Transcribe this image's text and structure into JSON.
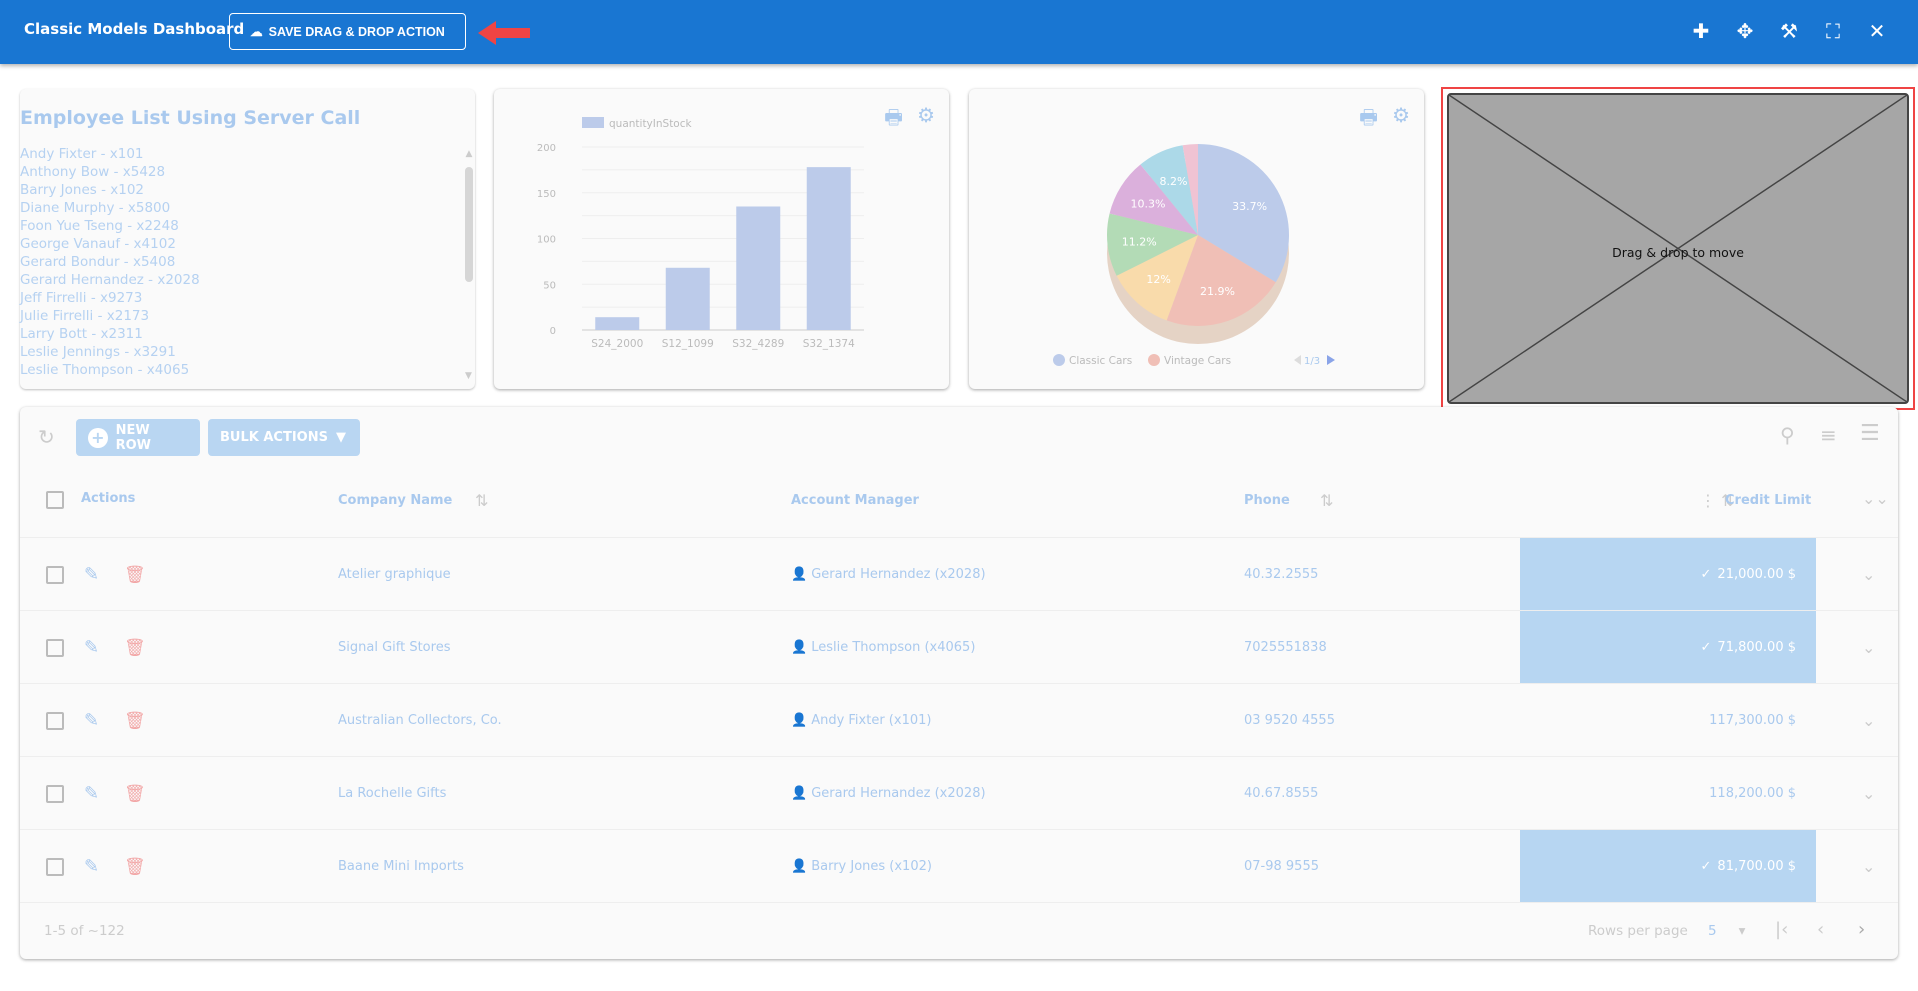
{
  "header": {
    "title": "Classic Models Dashboard",
    "save_button": "SAVE DRAG & DROP ACTION",
    "icons": [
      "puzzle-icon",
      "move-icon",
      "tools-icon",
      "fullscreen-icon",
      "close-icon"
    ]
  },
  "employee_card": {
    "title": "Employee List Using Server Call",
    "items": [
      "Andy Fixter - x101",
      "Anthony Bow - x5428",
      "Barry Jones - x102",
      "Diane Murphy - x5800",
      "Foon Yue Tseng - x2248",
      "George Vanauf - x4102",
      "Gerard Bondur - x5408",
      "Gerard Hernandez - x2028",
      "Jeff Firrelli - x9273",
      "Julie Firrelli - x2173",
      "Larry Bott - x2311",
      "Leslie Jennings - x3291",
      "Leslie Thompson - x4065"
    ]
  },
  "chart_data": [
    {
      "type": "bar",
      "categories": [
        "S24_2000",
        "S12_1099",
        "S32_4289",
        "S32_1374"
      ],
      "series": [
        {
          "name": "quantityInStock",
          "values": [
            14,
            68,
            135,
            178
          ]
        }
      ],
      "ylim": [
        0,
        200
      ],
      "yticks": [
        "0",
        "50",
        "100",
        "150",
        "200"
      ],
      "grid": true,
      "legend": "top-left",
      "color": "#bccbea"
    },
    {
      "type": "pie",
      "labels": [
        "33.7%",
        "21.9%",
        "12%",
        "11.2%",
        "10.3%",
        "8.2%",
        ""
      ],
      "values": [
        33.7,
        21.9,
        12,
        11.2,
        10.3,
        8.2,
        2.7
      ],
      "colors": [
        "#bccbea",
        "#f0bfb6",
        "#f9dbab",
        "#b3dbb6",
        "#dbb0dc",
        "#acd9e8",
        "#f0c3d3"
      ],
      "legend_entries": [
        {
          "name": "Classic Cars",
          "color": "#bccbea"
        },
        {
          "name": "Vintage Cars",
          "color": "#f0bfb6"
        }
      ],
      "legend_page": "1/3",
      "legend": "bottom"
    }
  ],
  "drag_placeholder": {
    "label": "Drag & drop to move"
  },
  "table": {
    "new_row": "NEW ROW",
    "bulk_actions": "BULK ACTIONS",
    "columns": {
      "actions": "Actions",
      "company": "Company Name",
      "manager": "Account Manager",
      "phone": "Phone",
      "credit": "Credit Limit"
    },
    "rows": [
      {
        "company": "Atelier graphique",
        "manager": "Gerard Hernandez (x2028)",
        "phone": "40.32.2555",
        "credit": "21,000.00 $",
        "highlight": true
      },
      {
        "company": "Signal Gift Stores",
        "manager": "Leslie Thompson (x4065)",
        "phone": "7025551838",
        "credit": "71,800.00 $",
        "highlight": true
      },
      {
        "company": "Australian Collectors, Co.",
        "manager": "Andy Fixter (x101)",
        "phone": "03 9520 4555",
        "credit": "117,300.00 $",
        "highlight": false
      },
      {
        "company": "La Rochelle Gifts",
        "manager": "Gerard Hernandez (x2028)",
        "phone": "40.67.8555",
        "credit": "118,200.00 $",
        "highlight": false
      },
      {
        "company": "Baane Mini Imports",
        "manager": "Barry Jones (x102)",
        "phone": "07-98 9555",
        "credit": "81,700.00 $",
        "highlight": true
      }
    ],
    "footer": {
      "range": "1-5 of ~122",
      "rows_per_page_label": "Rows per page",
      "rows_per_page": "5"
    }
  },
  "colors": {
    "header": "#1976d2",
    "accent_light": "#a9c9ee",
    "highlight": "#b7d6f2",
    "delete": "#f2a7a7",
    "drag_border": "#ef4444"
  }
}
